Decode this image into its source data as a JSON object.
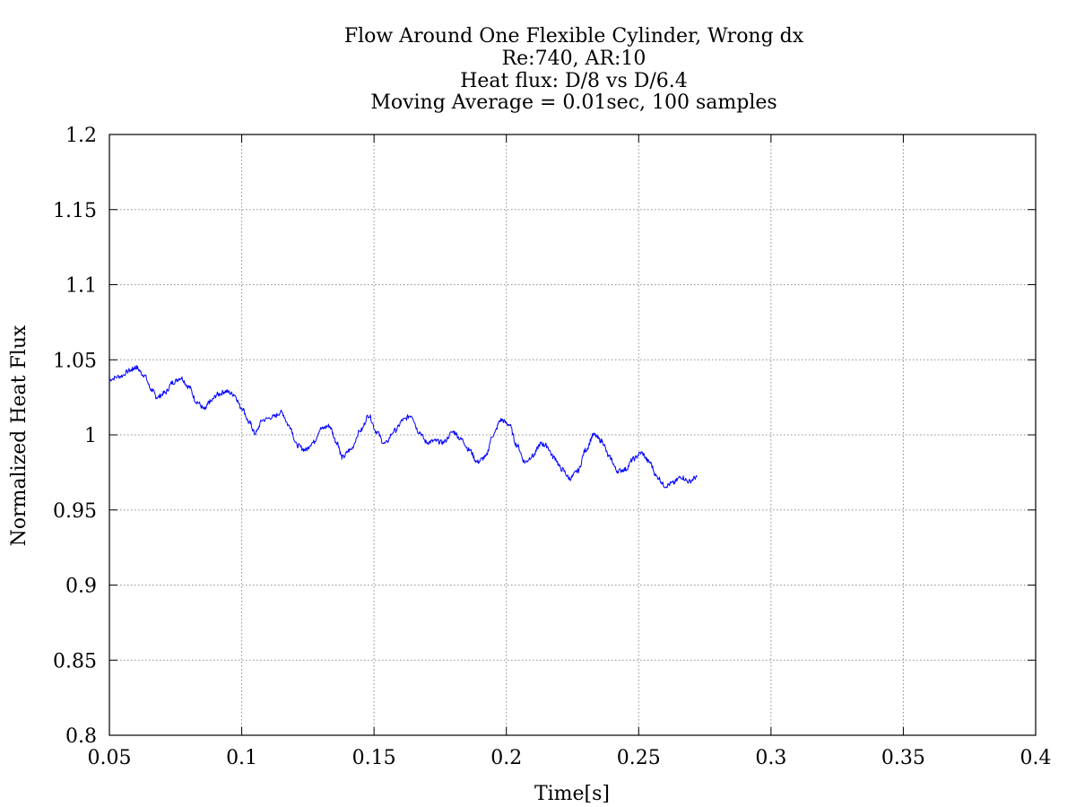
{
  "chart_data": {
    "type": "line",
    "title_lines": [
      "Flow Around One Flexible Cylinder, Wrong dx",
      "Re:740, AR:10",
      "Heat flux: D/8 vs D/6.4",
      "Moving Average = 0.01sec, 100 samples"
    ],
    "xlabel": "Time[s]",
    "ylabel": "Normalized Heat Flux",
    "xlim": [
      0.05,
      0.4
    ],
    "ylim": [
      0.8,
      1.2
    ],
    "x_ticks": [
      "0.05",
      "0.1",
      "0.15",
      "0.2",
      "0.25",
      "0.3",
      "0.35",
      "0.4"
    ],
    "y_ticks": [
      "0.8",
      "0.85",
      "0.9",
      "0.95",
      "1",
      "1.05",
      "1.1",
      "1.15",
      "1.2"
    ],
    "grid": true,
    "series": [
      {
        "color": "#0000ff",
        "x": [
          0.05,
          0.054,
          0.058,
          0.06,
          0.063,
          0.066,
          0.068,
          0.071,
          0.074,
          0.077,
          0.08,
          0.083,
          0.086,
          0.088,
          0.091,
          0.094,
          0.097,
          0.1,
          0.103,
          0.105,
          0.108,
          0.112,
          0.115,
          0.118,
          0.121,
          0.124,
          0.127,
          0.13,
          0.133,
          0.136,
          0.138,
          0.141,
          0.145,
          0.148,
          0.151,
          0.154,
          0.158,
          0.161,
          0.164,
          0.167,
          0.17,
          0.173,
          0.176,
          0.18,
          0.183,
          0.186,
          0.189,
          0.192,
          0.195,
          0.198,
          0.201,
          0.204,
          0.207,
          0.21,
          0.213,
          0.215,
          0.218,
          0.221,
          0.224,
          0.227,
          0.23,
          0.233,
          0.236,
          0.239,
          0.242,
          0.245,
          0.248,
          0.251,
          0.254,
          0.257,
          0.26,
          0.263,
          0.266,
          0.269,
          0.272
        ],
        "y": [
          1.037,
          1.039,
          1.043,
          1.045,
          1.04,
          1.03,
          1.025,
          1.028,
          1.035,
          1.038,
          1.032,
          1.022,
          1.017,
          1.022,
          1.027,
          1.029,
          1.027,
          1.018,
          1.008,
          1.001,
          1.01,
          1.012,
          1.015,
          1.006,
          0.993,
          0.99,
          0.995,
          1.004,
          1.006,
          0.995,
          0.985,
          0.99,
          1.003,
          1.013,
          1.002,
          0.994,
          1.003,
          1.01,
          1.013,
          1.002,
          0.995,
          0.996,
          0.995,
          1.002,
          0.997,
          0.99,
          0.982,
          0.985,
          1.0,
          1.01,
          1.007,
          0.993,
          0.982,
          0.986,
          0.994,
          0.993,
          0.985,
          0.977,
          0.971,
          0.976,
          0.99,
          1.0,
          0.996,
          0.985,
          0.976,
          0.977,
          0.984,
          0.988,
          0.982,
          0.972,
          0.966,
          0.968,
          0.972,
          0.969,
          0.972
        ]
      }
    ]
  }
}
